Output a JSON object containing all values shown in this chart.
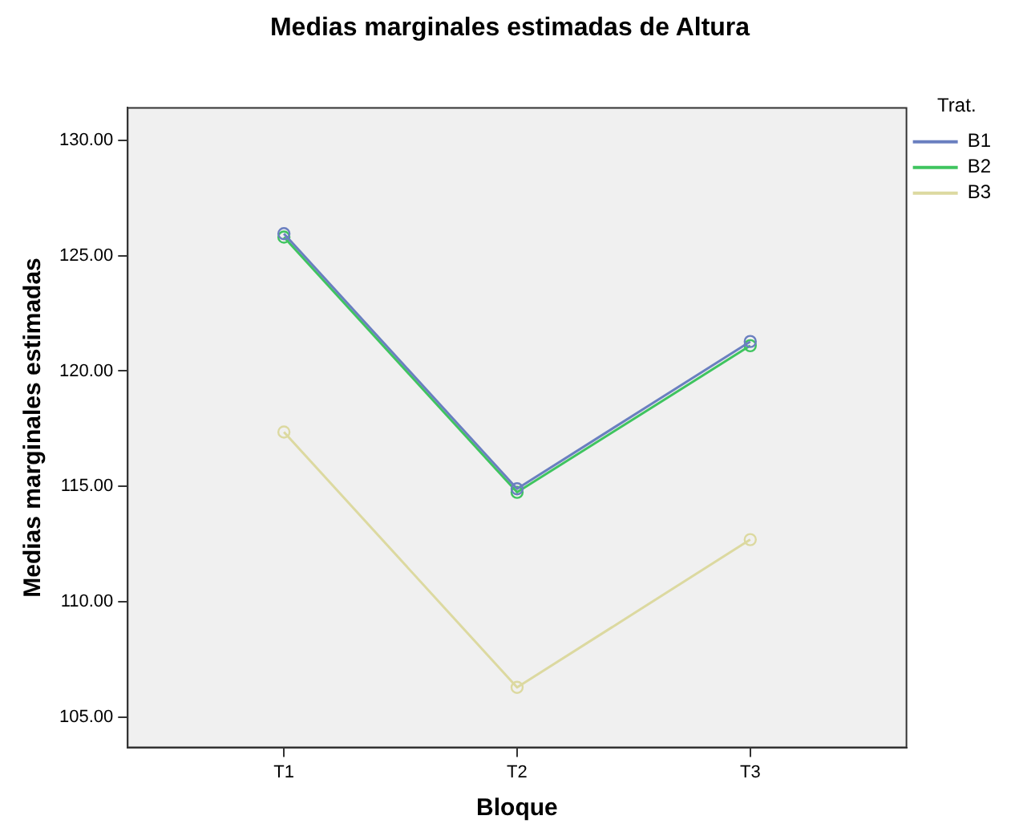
{
  "chart_data": {
    "type": "line",
    "title": "Medias marginales estimadas de Altura",
    "xlabel": "Bloque",
    "ylabel": "Medias marginales estimadas",
    "legend_title": "Trat.",
    "categories": [
      "T1",
      "T2",
      "T3"
    ],
    "series": [
      {
        "name": "B1",
        "color": "#6a7fc0",
        "values": [
          125.95,
          114.9,
          121.28
        ]
      },
      {
        "name": "B2",
        "color": "#3fc45f",
        "values": [
          125.8,
          114.75,
          121.1
        ]
      },
      {
        "name": "B3",
        "color": "#dcd9a0",
        "values": [
          117.36,
          106.3,
          112.7
        ]
      }
    ],
    "ylim": [
      103.7,
      131.4
    ],
    "yticks": [
      {
        "value": 105,
        "label": "105.00"
      },
      {
        "value": 110,
        "label": "110.00"
      },
      {
        "value": 115,
        "label": "115.00"
      },
      {
        "value": 120,
        "label": "120.00"
      },
      {
        "value": 125,
        "label": "125.00"
      },
      {
        "value": 130,
        "label": "130.00"
      }
    ],
    "grid": false,
    "legend": "right",
    "marker": "circle",
    "line_style": "solid"
  }
}
